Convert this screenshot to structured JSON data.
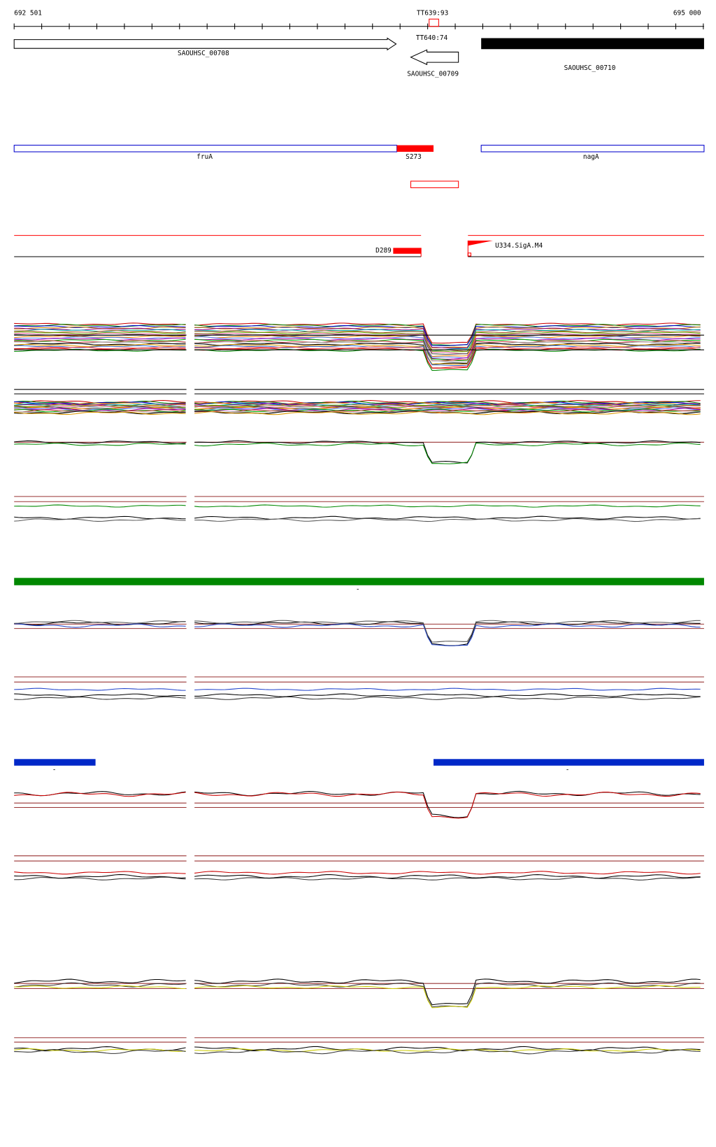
{
  "ruler": {
    "start": "692 501",
    "marker": "TT639:93",
    "end": "695 000"
  },
  "genes": {
    "marker": "TT640:74",
    "items": [
      "SAOUHSC_00708",
      "SAOUHSC_00709",
      "SAOUHSC_00710"
    ]
  },
  "annotations": [
    "fruA",
    "S273",
    "nagA"
  ],
  "features": [
    "D289",
    "U334.SigA.M4"
  ],
  "bar_labels": [
    "-",
    "-",
    "-"
  ]
}
